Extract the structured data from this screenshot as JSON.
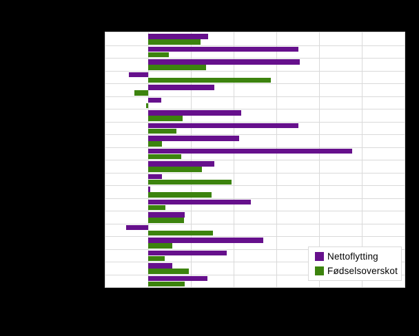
{
  "page": {
    "background_color": "#000000",
    "plot_background_color": "#ffffff",
    "grid_color": "#d9d9d9"
  },
  "legend": {
    "items": [
      {
        "label": "Nettoflytting",
        "color": "#66108c",
        "swatch": "purple-square"
      },
      {
        "label": "Fødselsoverskot",
        "color": "#3c830e",
        "swatch": "green-square"
      }
    ],
    "position": "inside-bottom-right",
    "background": "#ffffff",
    "border_color": "#d9d9d9"
  },
  "chart_data": {
    "type": "bar",
    "orientation": "horizontal",
    "title": "",
    "xlabel": "",
    "ylabel": "",
    "n_categories": 20,
    "categories_visible": false,
    "x_axis": {
      "min": -1,
      "max": 6,
      "gridline_step": 1,
      "tick_labels_visible": false
    },
    "values_unit": "gridline-units",
    "series": [
      {
        "name": "Nettoflytting",
        "color": "#66108c",
        "values": [
          1.41,
          3.51,
          3.55,
          -0.45,
          1.54,
          0.3,
          2.17,
          3.51,
          2.13,
          4.78,
          1.54,
          0.32,
          0.04,
          2.4,
          0.85,
          -0.51,
          2.69,
          1.83,
          0.56,
          1.38
        ]
      },
      {
        "name": "Fødselsoverskot",
        "color": "#3c830e",
        "values": [
          1.22,
          0.48,
          1.35,
          2.87,
          -0.32,
          -0.05,
          0.8,
          0.66,
          0.32,
          0.78,
          1.26,
          1.95,
          1.48,
          0.4,
          0.83,
          1.52,
          0.56,
          0.39,
          0.95,
          0.86
        ]
      }
    ],
    "legend_position": "bottom-right-inside",
    "grid": true
  }
}
